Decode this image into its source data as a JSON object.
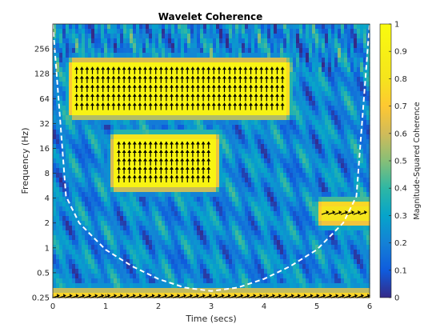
{
  "chart_data": {
    "type": "heatmap",
    "title": "Wavelet Coherence",
    "xlabel": "Time (secs)",
    "ylabel": "Frequency (Hz)",
    "colorbar_label": "Magnitude-Squared Coherence",
    "colormap": "parula",
    "xlim": [
      0,
      6
    ],
    "ylim": [
      0.25,
      512
    ],
    "yscale": "log2",
    "x_ticks": [
      0,
      1,
      2,
      3,
      4,
      5,
      6
    ],
    "y_ticks": [
      0.25,
      0.5,
      1,
      2,
      4,
      8,
      16,
      32,
      64,
      128,
      256
    ],
    "y_tick_labels": [
      "0.25",
      "0.5",
      "1",
      "2",
      "4",
      "8",
      "16",
      "32",
      "64",
      "128",
      "256"
    ],
    "colorbar_range": [
      0,
      1
    ],
    "colorbar_ticks": [
      0,
      0.1,
      0.2,
      0.3,
      0.4,
      0.5,
      0.6,
      0.7,
      0.8,
      0.9,
      1
    ],
    "high_coherence_regions": [
      {
        "t_start": 0.4,
        "t_end": 4.4,
        "f_low": 45,
        "f_high": 160,
        "coherence": 0.95,
        "phase": "up"
      },
      {
        "t_start": 1.2,
        "t_end": 3.05,
        "f_low": 6,
        "f_high": 20,
        "coherence": 0.95,
        "phase": "up"
      },
      {
        "t_start": 5.1,
        "t_end": 6.0,
        "f_low": 2.2,
        "f_high": 3.2,
        "coherence": 0.8,
        "phase": "right"
      },
      {
        "t_start": 0.0,
        "t_end": 6.0,
        "f_low": 0.25,
        "f_high": 0.27,
        "coherence": 0.75,
        "phase": "right"
      }
    ],
    "cone_of_influence": {
      "t": [
        0,
        0.25,
        0.5,
        1,
        1.5,
        2,
        2.5,
        3,
        3.5,
        4,
        4.5,
        5,
        5.5,
        5.75,
        6
      ],
      "f": [
        512,
        4.2,
        2,
        0.95,
        0.6,
        0.42,
        0.33,
        0.3,
        0.33,
        0.42,
        0.6,
        0.95,
        2,
        4.2,
        512
      ]
    }
  }
}
